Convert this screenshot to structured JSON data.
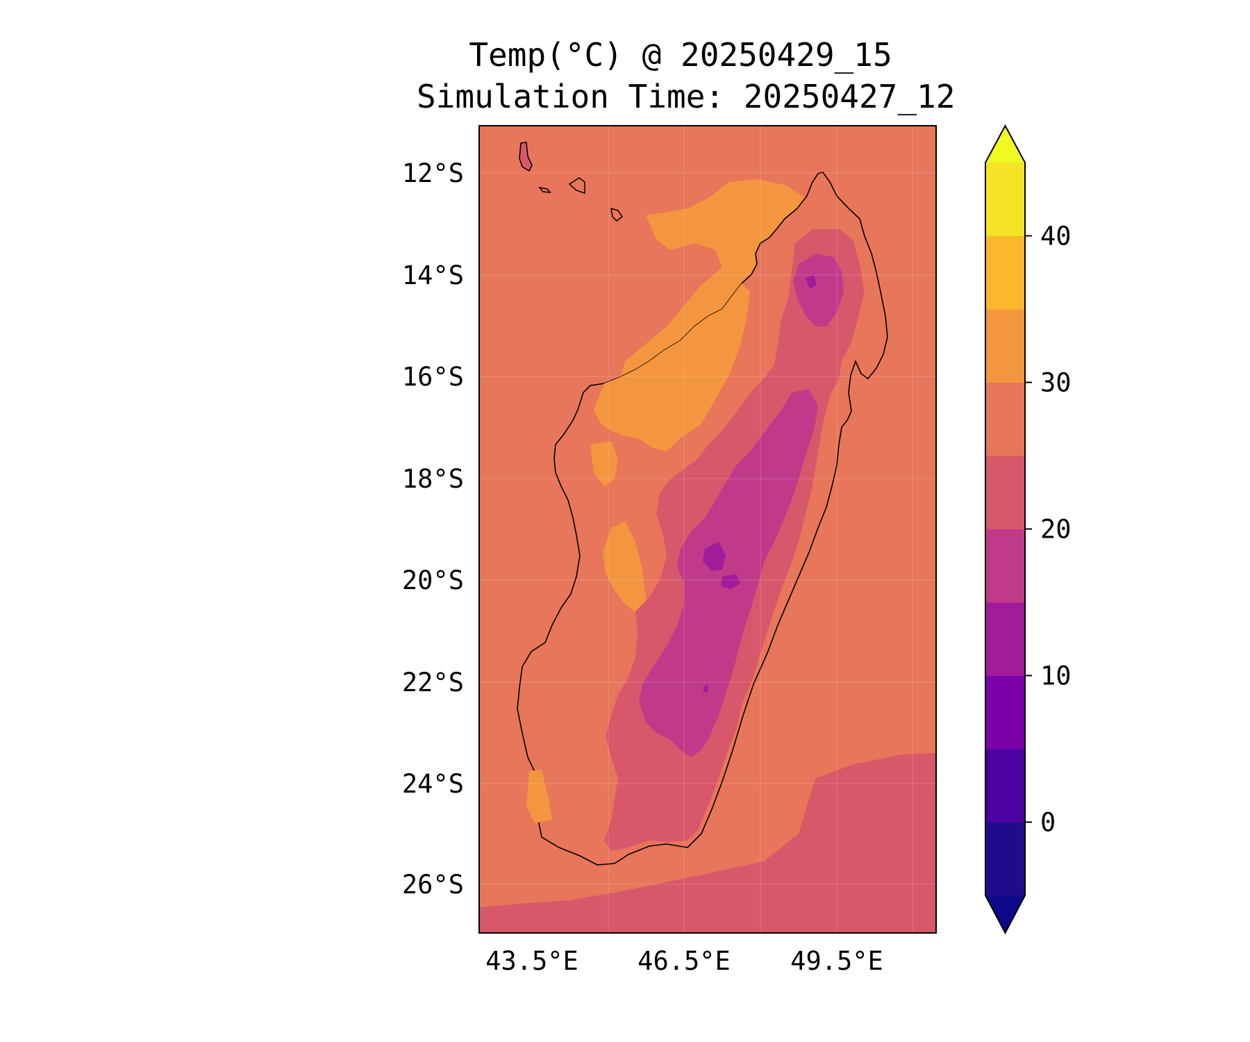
{
  "title_line1": "Temp(°C) @ 20250429_15",
  "title_line2": "Simulation Time: 20250427_12",
  "lat_labels": [
    "12°S",
    "14°S",
    "16°S",
    "18°S",
    "20°S",
    "22°S",
    "24°S",
    "26°S"
  ],
  "lon_labels": [
    "43.5°E",
    "46.5°E",
    "49.5°E"
  ],
  "colorbar": {
    "tick_labels": [
      "0",
      "10",
      "20",
      "30",
      "40"
    ],
    "levels": [
      -5,
      0,
      5,
      10,
      15,
      20,
      25,
      30,
      35,
      40,
      45
    ],
    "colors": [
      "#1f0c8c",
      "#4a02a0",
      "#7b02a8",
      "#a11c9b",
      "#c13a8a",
      "#d8586b",
      "#e8765a",
      "#f4963f",
      "#fcb72c",
      "#f3e526"
    ],
    "under_color": "#0d0887",
    "over_color": "#f0f921",
    "extend": "both"
  },
  "map": {
    "background_color": "#e8765a",
    "colormap": "plasma",
    "region": "Madagascar",
    "lat_range": [
      -27,
      -11
    ],
    "lon_range": [
      42.5,
      51.5
    ]
  }
}
